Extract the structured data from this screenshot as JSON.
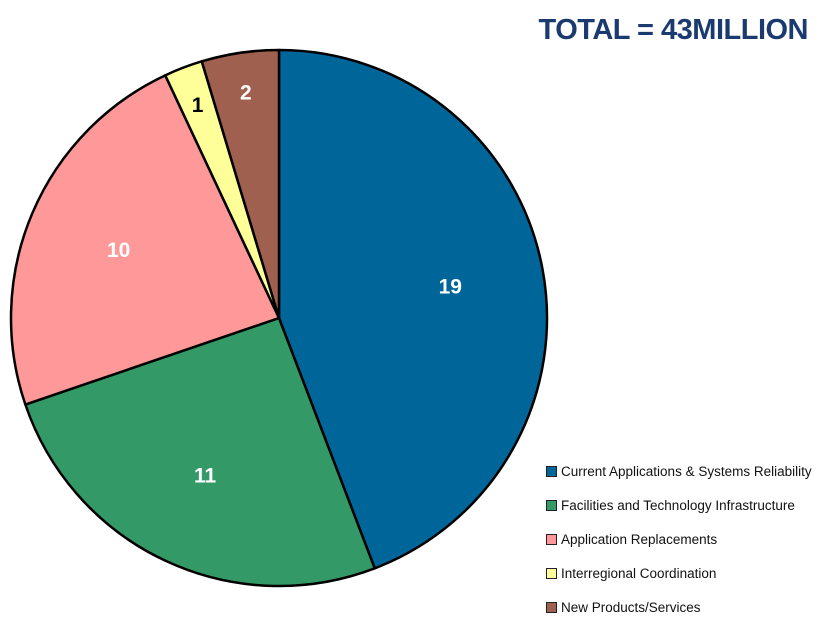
{
  "chart_data": {
    "type": "pie",
    "title": "TOTAL = 43MILLION",
    "start": "top",
    "direction": "clockwise",
    "categories": [
      "Current Applications & Systems Reliability",
      "Facilities and Technology Infrastructure",
      "Application Replacements",
      "Interregional Coordination",
      "New Products/Services"
    ],
    "values": [
      19,
      11,
      10,
      1,
      2
    ],
    "colors": [
      "#006699",
      "#339966",
      "#FF9999",
      "#FFFF99",
      "#A0604F"
    ],
    "label_colors": [
      "#ffffff",
      "#ffffff",
      "#ffffff",
      "#000000",
      "#ffffff"
    ],
    "legend_position": "bottom-right"
  }
}
